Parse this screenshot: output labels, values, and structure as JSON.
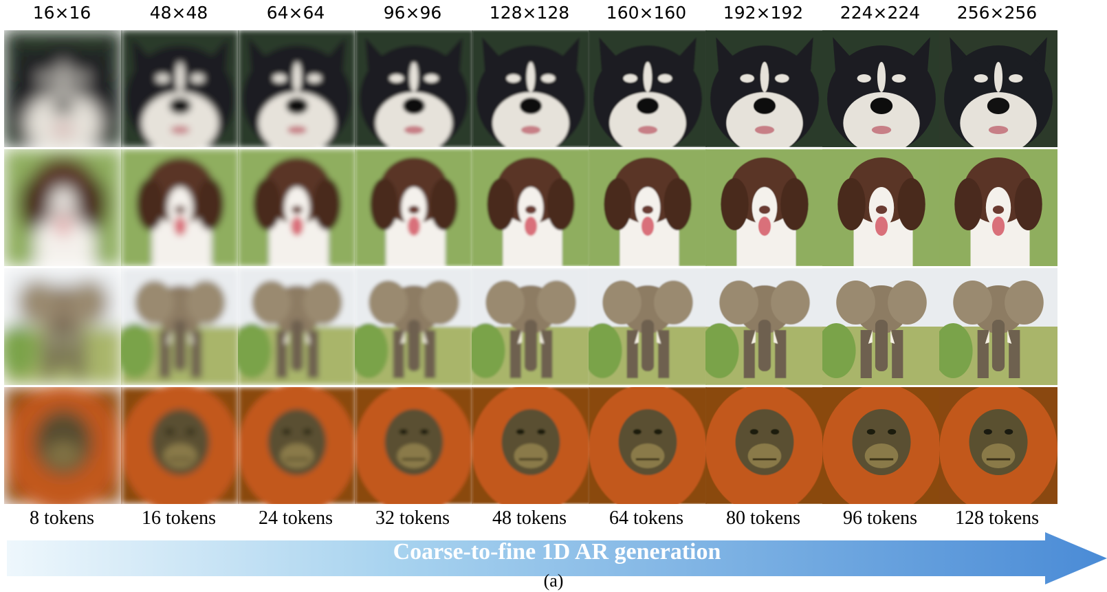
{
  "resolutions": [
    "16×16",
    "48×48",
    "64×64",
    "96×96",
    "128×128",
    "160×160",
    "192×192",
    "224×224",
    "256×256"
  ],
  "tokens": [
    "8 tokens",
    "16 tokens",
    "24 tokens",
    "32 tokens",
    "48 tokens",
    "64 tokens",
    "80 tokens",
    "96 tokens",
    "128 tokens"
  ],
  "arrow_title": "Coarse-to-fine 1D AR generation",
  "caption": "(a)",
  "rows": [
    {
      "subject": "husky-dog",
      "bg": "#1e2a20",
      "main": "#1b1d22",
      "accent": "#e6e2da"
    },
    {
      "subject": "spaniel-dog",
      "bg": "#8fae5e",
      "main": "#5a3426",
      "accent": "#f4f1ec"
    },
    {
      "subject": "elephant",
      "bg": "#e9ecef",
      "main": "#8d7c63",
      "accent": "#7aa34a"
    },
    {
      "subject": "orangutan",
      "bg": "#8a4810",
      "main": "#c2581b",
      "accent": "#5a5030"
    }
  ],
  "colors": {
    "arrow_start": "#e8f4fb",
    "arrow_end": "#4a8fd8"
  }
}
